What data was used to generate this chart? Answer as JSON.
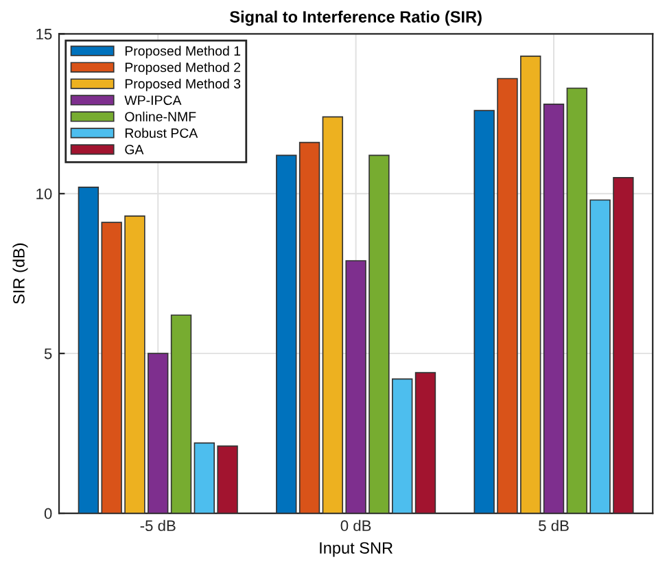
{
  "chart_data": {
    "type": "bar",
    "title": "Signal to Interference Ratio (SIR)",
    "xlabel": "Input SNR",
    "ylabel": "SIR (dB)",
    "categories": [
      "-5 dB",
      "0 dB",
      "5 dB"
    ],
    "series": [
      {
        "name": "Proposed Method 1",
        "color": "#0072bd",
        "values": [
          10.2,
          11.2,
          12.6
        ]
      },
      {
        "name": "Proposed Method 2",
        "color": "#d95319",
        "values": [
          9.1,
          11.6,
          13.6
        ]
      },
      {
        "name": "Proposed Method 3",
        "color": "#edb120",
        "values": [
          9.3,
          12.4,
          14.3
        ]
      },
      {
        "name": "WP-IPCA",
        "color": "#7e2f8e",
        "values": [
          5.0,
          7.9,
          12.8
        ]
      },
      {
        "name": "Online-NMF",
        "color": "#77ac30",
        "values": [
          6.2,
          11.2,
          13.3
        ]
      },
      {
        "name": "Robust PCA",
        "color": "#4dbeee",
        "values": [
          2.2,
          4.2,
          9.8
        ]
      },
      {
        "name": "GA",
        "color": "#a2142f",
        "values": [
          2.1,
          4.4,
          10.5
        ]
      }
    ],
    "ylim": [
      0,
      15
    ],
    "yticks": [
      0,
      5,
      10,
      15
    ],
    "grid": true,
    "legend": "top left"
  }
}
